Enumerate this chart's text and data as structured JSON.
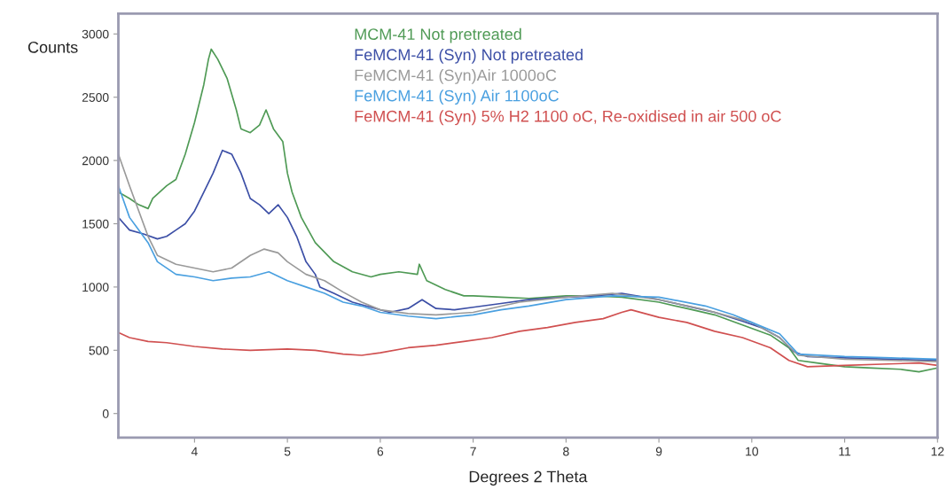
{
  "chart_data": {
    "type": "line",
    "xlabel": "Degrees 2 Theta",
    "ylabel": "Counts",
    "xlim": [
      3.18,
      12
    ],
    "ylim": [
      -190,
      3160
    ],
    "xticks": [
      4,
      5,
      6,
      7,
      8,
      9,
      10,
      11,
      12
    ],
    "yticks": [
      0,
      500,
      1000,
      1500,
      2000,
      2500,
      3000
    ],
    "grid": false,
    "legend": "top",
    "marker": "none",
    "line_style": "solid",
    "series": [
      {
        "name": "MCM-41 Not pretreated",
        "color": "#4f9a55",
        "x": [
          3.18,
          3.3,
          3.4,
          3.5,
          3.55,
          3.7,
          3.8,
          3.9,
          4.0,
          4.1,
          4.15,
          4.18,
          4.25,
          4.35,
          4.45,
          4.5,
          4.6,
          4.7,
          4.77,
          4.85,
          4.95,
          5.0,
          5.05,
          5.15,
          5.3,
          5.5,
          5.7,
          5.9,
          6.0,
          6.2,
          6.4,
          6.42,
          6.5,
          6.7,
          6.9,
          7.0,
          7.3,
          7.6,
          8.0,
          8.3,
          8.6,
          9.0,
          9.3,
          9.6,
          9.9,
          10.2,
          10.4,
          10.5,
          10.7,
          11.0,
          11.3,
          11.6,
          11.8,
          12.0
        ],
        "values": [
          1750,
          1700,
          1650,
          1620,
          1700,
          1800,
          1850,
          2050,
          2300,
          2600,
          2800,
          2880,
          2800,
          2650,
          2400,
          2250,
          2220,
          2280,
          2400,
          2250,
          2150,
          1900,
          1750,
          1550,
          1350,
          1200,
          1120,
          1080,
          1100,
          1120,
          1100,
          1180,
          1050,
          980,
          930,
          930,
          920,
          910,
          930,
          930,
          920,
          880,
          830,
          780,
          700,
          620,
          520,
          420,
          400,
          370,
          360,
          350,
          330,
          360
        ]
      },
      {
        "name": "FeMCM-41 (Syn) Not pretreated",
        "color": "#3c4fa6",
        "x": [
          3.18,
          3.3,
          3.45,
          3.6,
          3.7,
          3.8,
          3.9,
          4.0,
          4.1,
          4.2,
          4.3,
          4.4,
          4.5,
          4.6,
          4.7,
          4.8,
          4.9,
          5.0,
          5.1,
          5.2,
          5.3,
          5.35,
          5.5,
          5.7,
          5.9,
          6.1,
          6.3,
          6.45,
          6.6,
          6.8,
          7.0,
          7.3,
          7.6,
          8.0,
          8.3,
          8.6,
          9.0,
          9.3,
          9.6,
          9.9,
          10.1,
          10.3,
          10.45,
          10.6,
          11.0,
          11.5,
          12.0
        ],
        "values": [
          1550,
          1450,
          1420,
          1380,
          1400,
          1450,
          1500,
          1600,
          1750,
          1900,
          2080,
          2050,
          1900,
          1700,
          1650,
          1580,
          1650,
          1550,
          1400,
          1200,
          1100,
          1000,
          950,
          880,
          840,
          800,
          830,
          900,
          830,
          820,
          840,
          870,
          900,
          920,
          930,
          950,
          900,
          850,
          800,
          730,
          680,
          600,
          490,
          450,
          440,
          430,
          420
        ]
      },
      {
        "name": "FeMCM-41 (Syn)Air 1000oC",
        "color": "#9a9a9a",
        "x": [
          3.18,
          3.3,
          3.4,
          3.5,
          3.6,
          3.8,
          4.0,
          4.2,
          4.4,
          4.6,
          4.75,
          4.9,
          5.0,
          5.2,
          5.4,
          5.6,
          5.8,
          6.0,
          6.3,
          6.6,
          7.0,
          7.5,
          8.0,
          8.5,
          9.0,
          9.5,
          10.0,
          10.3,
          10.5,
          11.0,
          11.5,
          12.0
        ],
        "values": [
          2050,
          1800,
          1600,
          1400,
          1250,
          1180,
          1150,
          1120,
          1150,
          1250,
          1300,
          1270,
          1200,
          1100,
          1050,
          960,
          880,
          820,
          790,
          780,
          800,
          880,
          920,
          950,
          900,
          820,
          720,
          600,
          460,
          430,
          420,
          410
        ]
      },
      {
        "name": "FeMCM-41 (Syn) Air 1100oC",
        "color": "#4aa0e0",
        "x": [
          3.18,
          3.3,
          3.5,
          3.6,
          3.8,
          4.0,
          4.2,
          4.4,
          4.6,
          4.8,
          5.0,
          5.2,
          5.4,
          5.6,
          5.8,
          6.0,
          6.3,
          6.6,
          7.0,
          7.3,
          7.6,
          8.0,
          8.5,
          9.0,
          9.5,
          9.8,
          10.0,
          10.3,
          10.5,
          11.0,
          11.5,
          12.0
        ],
        "values": [
          1800,
          1550,
          1350,
          1200,
          1100,
          1080,
          1050,
          1070,
          1080,
          1120,
          1050,
          1000,
          950,
          880,
          850,
          800,
          770,
          750,
          780,
          820,
          850,
          900,
          930,
          920,
          850,
          780,
          720,
          630,
          470,
          450,
          440,
          430
        ]
      },
      {
        "name": "FeMCM-41 (Syn) 5% H2 1100 oC, Re-oxidised in air 500 oC",
        "color": "#d05050",
        "x": [
          3.18,
          3.3,
          3.5,
          3.7,
          4.0,
          4.3,
          4.6,
          5.0,
          5.3,
          5.6,
          5.8,
          6.0,
          6.3,
          6.6,
          6.9,
          7.2,
          7.5,
          7.8,
          8.1,
          8.4,
          8.6,
          8.7,
          9.0,
          9.3,
          9.6,
          9.9,
          10.2,
          10.4,
          10.6,
          11.0,
          11.4,
          11.8,
          12.0
        ],
        "values": [
          640,
          600,
          570,
          560,
          530,
          510,
          500,
          510,
          500,
          470,
          460,
          480,
          520,
          540,
          570,
          600,
          650,
          680,
          720,
          750,
          800,
          820,
          760,
          720,
          650,
          600,
          520,
          420,
          370,
          380,
          390,
          400,
          380
        ]
      }
    ]
  }
}
